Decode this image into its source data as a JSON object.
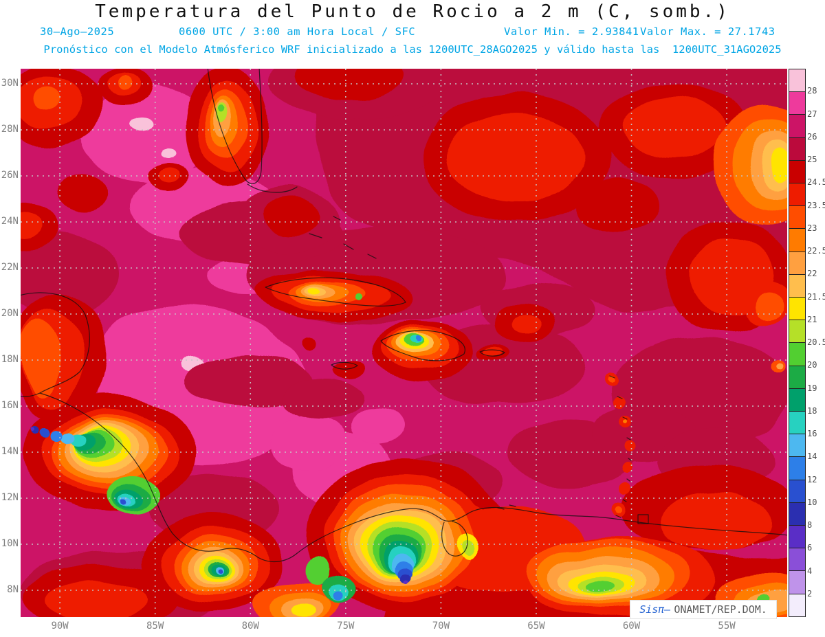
{
  "header": {
    "title": "Temperatura del Punto de Rocio a 2 m (C, somb.)",
    "date": "30–Ago–2025",
    "time_line": "0600 UTC / 3:00 am Hora Local / SFC",
    "min_value_text": "Valor Min. = 2.93841",
    "max_value_text": "Valor Max. = 27.1743",
    "model_line": "Pronóstico con el Modelo Atmósferico WRF inicializado a las 1200UTC_28AGO2025 y válido hasta las  1200UTC_31AGO2025"
  },
  "footer": {
    "brand": "Sisπ–",
    "org": "ONAMET/REP.DOM."
  },
  "colors": {
    "header_accent": "#00a5e5",
    "title_text": "#111111",
    "axis_text": "#808080",
    "colorbar_text": "#4a4a4a",
    "grid_line": "#c6c6c6",
    "coast_line": "#101010",
    "brand_blue": "#1f5fd0",
    "org_gray": "#5a5a5a",
    "badge_border": "#e2e2e2"
  },
  "chart_data": {
    "type": "heatmap",
    "title": "Temperatura del Punto de Rocio a 2 m (C, somb.)",
    "variable": "Dew point temperature at 2 m",
    "units": "C",
    "valid_date": "30-Ago-2025",
    "valid_time": "0600 UTC / 3:00 am Hora Local / SFC",
    "value_min": 2.93841,
    "value_max": 27.1743,
    "model": "WRF",
    "initialized": "1200UTC_28AGO2025",
    "valid_until": "1200UTC_31AGO2025",
    "x_ticks": [
      "90W",
      "85W",
      "80W",
      "75W",
      "70W",
      "65W",
      "60W",
      "55W"
    ],
    "y_ticks": [
      "30N",
      "28N",
      "26N",
      "24N",
      "22N",
      "20N",
      "18N",
      "16N",
      "14N",
      "12N",
      "10N",
      "8N"
    ],
    "lon_range_deg_west": [
      92.1,
      51.9
    ],
    "lat_range_deg_north": [
      6.8,
      30.7
    ],
    "legend_position": "right",
    "grid": true,
    "colorbar_labels_top_to_bottom": [
      "28",
      "27",
      "26",
      "25",
      "24.5",
      "23.5",
      "23",
      "22.5",
      "22",
      "21.5",
      "21",
      "20.5",
      "20",
      "19",
      "18",
      "16",
      "14",
      "12",
      "10",
      "8",
      "6",
      "4",
      "2"
    ],
    "colorbar_colors_top_to_bottom": [
      "#f9c2da",
      "#ee3a9c",
      "#cc1466",
      "#bb0a3c",
      "#c90000",
      "#ee1c00",
      "#ff4d00",
      "#ff7b00",
      "#ffa040",
      "#ffbe4d",
      "#ffe400",
      "#b5e028",
      "#52cf31",
      "#1cab45",
      "#00a06b",
      "#27d1c0",
      "#4db8f0",
      "#2d7fe8",
      "#2950d0",
      "#2b2fb0",
      "#5a2ec6",
      "#8a4fd8",
      "#bf93ea",
      "#f3edfc"
    ],
    "regions_note": "Warm magenta/crimson dew points dominate the ocean; red/orange bands north Atlantic, Cuba, Venezuela coast; cool green/blue cores over Hispaniola mountains, Guatemala-Honduras-Nicaragua highlands, Costa Rica-Panama and the Colombian Andes"
  }
}
